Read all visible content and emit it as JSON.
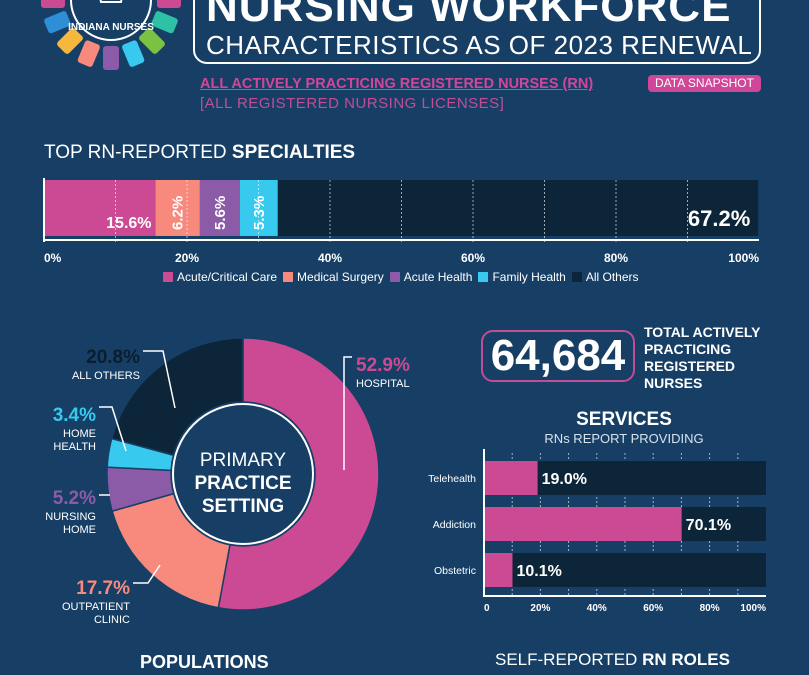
{
  "header": {
    "title": "NURSING WORKFORCE",
    "subtitle": "CHARACTERISTICS AS OF 2023 RENEWAL",
    "logo_text": "INDIANA NURSES",
    "line1": "ALL ACTIVELY PRACTICING REGISTERED NURSES (RN)",
    "badge": "DATA SNAPSHOT",
    "line2": "[ALL REGISTERED NURSING LICENSES]"
  },
  "colors": {
    "background": "#173f66",
    "dark": "#0c2538",
    "pink": "#cc4a93",
    "salmon": "#f78a7d",
    "purple": "#8c5ba8",
    "cyan": "#38c9ef"
  },
  "specialties": {
    "title_prefix": "TOP RN-REPORTED ",
    "title_bold": "SPECIALTIES"
  },
  "total": {
    "value": "64,684",
    "label_lines": [
      "TOTAL ACTIVELY",
      "PRACTICING",
      "REGISTERED",
      "NURSES"
    ]
  },
  "practice": {
    "center_lines": [
      "PRIMARY",
      "PRACTICE",
      "SETTING"
    ],
    "labels": {
      "hospital": {
        "value": "52.9%",
        "name": [
          "HOSPITAL"
        ]
      },
      "outpatient": {
        "value": "17.7%",
        "name": [
          "OUTPATIENT",
          "CLINIC"
        ]
      },
      "nursing": {
        "value": "5.2%",
        "name": [
          "NURSING",
          "HOME"
        ]
      },
      "home": {
        "value": "3.4%",
        "name": [
          "HOME",
          "HEALTH"
        ]
      },
      "others": {
        "value": "20.8%",
        "name": [
          "ALL OTHERS"
        ]
      }
    }
  },
  "services": {
    "title": "SERVICES",
    "subtitle": "RNs REPORT PROVIDING"
  },
  "sections": {
    "populations": "POPULATIONS",
    "roles_prefix": "SELF-REPORTED ",
    "roles_bold": "RN ROLES"
  },
  "chart_data": [
    {
      "type": "bar",
      "orientation": "horizontal-stacked",
      "categories": [
        "Acute/Critical Care",
        "Medical Surgery",
        "Acute Health",
        "Family Health",
        "All Others"
      ],
      "values": [
        15.6,
        6.2,
        5.6,
        5.3,
        67.2
      ],
      "data_labels": [
        "15.6%",
        "6.2%",
        "5.6%",
        "5.3%",
        "67.2%"
      ],
      "xlim": [
        0,
        100
      ],
      "ticks": [
        "0%",
        "20%",
        "40%",
        "60%",
        "80%",
        "100%"
      ],
      "tick_values": [
        0,
        20,
        40,
        60,
        80,
        100
      ],
      "legend": "bottom",
      "grid": true
    },
    {
      "type": "pie",
      "variant": "donut",
      "categories": [
        "HOSPITAL",
        "OUTPATIENT CLINIC",
        "NURSING HOME",
        "HOME HEALTH",
        "ALL OTHERS"
      ],
      "values": [
        52.9,
        17.7,
        5.2,
        3.4,
        20.8
      ]
    },
    {
      "type": "bar",
      "orientation": "horizontal",
      "categories": [
        "Telehealth",
        "Addiction",
        "Obstetric"
      ],
      "values": [
        19.0,
        70.1,
        10.1
      ],
      "data_labels": [
        "19.0%",
        "70.1%",
        "10.1%"
      ],
      "xlim": [
        0,
        100
      ],
      "ticks": [
        "0",
        "20%",
        "40%",
        "60%",
        "80%",
        "100%"
      ],
      "tick_values": [
        0,
        20,
        40,
        60,
        80,
        100
      ]
    }
  ]
}
